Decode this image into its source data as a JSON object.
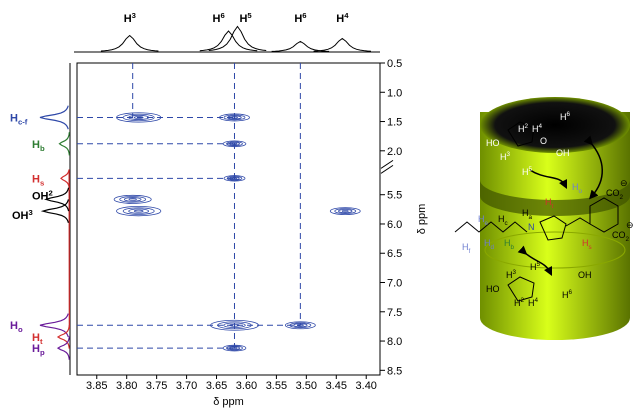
{
  "chart_data": {
    "type": "contour",
    "xlabel": "δ ppm",
    "ylabel": "δ ppm",
    "xlim": [
      3.883,
      3.377
    ],
    "xticks": [
      3.85,
      {
        "value": 3.8,
        "label": "3.80"
      },
      3.75,
      {
        "value": 3.7,
        "label": "3.70"
      },
      3.65,
      {
        "value": 3.6,
        "label": "3.60"
      },
      3.55,
      {
        "value": 3.5,
        "label": "3.50"
      },
      3.45,
      {
        "value": 3.4,
        "label": "3.40"
      }
    ],
    "ylim": [
      0.5,
      8.58
    ],
    "ybreak": [
      2.3,
      5.05
    ],
    "yticks": [
      0.5,
      {
        "value": 1,
        "label": "1.0"
      },
      1.5,
      {
        "value": 2,
        "label": "2.0"
      },
      5.5,
      {
        "value": 6,
        "label": "6.0"
      },
      6.5,
      {
        "value": 7,
        "label": "7.0"
      },
      7.5,
      {
        "value": 8,
        "label": "8.0"
      },
      8.5
    ],
    "color": "#2e48a8",
    "peaks": {
      "x": [
        3.78,
        3.62,
        3.62,
        3.62,
        3.79,
        3.78,
        3.435,
        3.62,
        3.51,
        3.62
      ],
      "y": [
        1.43,
        1.43,
        1.88,
        5.22,
        5.58,
        5.78,
        5.78,
        7.73,
        7.73,
        8.12
      ],
      "intensity": [
        0.9,
        0.5,
        0.3,
        0.25,
        0.7,
        0.9,
        0.5,
        1,
        0.5,
        0.3
      ]
    },
    "vguides": [
      [
        3.79,
        1.43
      ],
      [
        3.62,
        8.12
      ],
      [
        3.51,
        7.73
      ]
    ],
    "hguides": [
      [
        1.43,
        3.62
      ],
      [
        1.88,
        3.62
      ],
      [
        5.22,
        3.62
      ],
      [
        7.73,
        3.51
      ],
      [
        8.12,
        3.62
      ]
    ],
    "top_spectrum": {
      "labels": [
        {
          "main": "H",
          "sup": "3"
        },
        {
          "main": "H",
          "sup": "6"
        },
        {
          "main": "H",
          "sup": "5"
        },
        {
          "main": "H",
          "sup": "6"
        },
        {
          "main": "H",
          "sup": "4"
        }
      ],
      "x": [
        3.795,
        3.63,
        3.615,
        3.51,
        3.44
      ],
      "heights": [
        0.55,
        0.7,
        0.85,
        0.35,
        0.45
      ]
    },
    "left_spectrum": {
      "labels": [
        {
          "main": "H",
          "sub": "c-f"
        },
        {
          "main": "H",
          "sub": "b"
        },
        {
          "main": "H",
          "sub": "s"
        },
        {
          "main": "OH",
          "sup": "2"
        },
        {
          "main": "OH",
          "sup": "3"
        },
        {
          "main": "H",
          "sub": "o"
        },
        {
          "main": "H",
          "sub": "t"
        },
        {
          "main": "H",
          "sub": "p"
        }
      ],
      "y": [
        1.43,
        1.88,
        5.22,
        5.58,
        5.78,
        7.73,
        7.93,
        8.12
      ],
      "heights": [
        1,
        0.35,
        0.3,
        0.8,
        0.9,
        1,
        0.4,
        0.4
      ],
      "colors": [
        "#2e48a8",
        "#2e7d32",
        "#d32f2f",
        "#000000",
        "#000000",
        "#6a1b9a",
        "#d32f2f",
        "#6a1b9a"
      ]
    }
  },
  "diagram": {
    "labels": [
      {
        "main": "H",
        "sup": "2"
      },
      {
        "main": "H",
        "sup": "4"
      },
      {
        "main": "H",
        "sup": "6"
      },
      {
        "main": "HO"
      },
      {
        "main": "OH"
      },
      {
        "main": "H",
        "sup": "3"
      },
      {
        "main": "H",
        "sup": "5"
      },
      {
        "main": "O"
      },
      {
        "main": "H",
        "sub": "o"
      },
      {
        "main": "CO",
        "sub": "2"
      },
      {
        "main": "⊖"
      },
      {
        "main": "H",
        "sub": "e"
      },
      {
        "main": "H",
        "sub": "c"
      },
      {
        "main": "H",
        "sub": "a"
      },
      {
        "main": "H",
        "sub": "t"
      },
      {
        "main": "H",
        "sub": "f"
      },
      {
        "main": "H",
        "sub": "d"
      },
      {
        "main": "H",
        "sub": "b"
      },
      {
        "main": "N"
      },
      {
        "main": "H",
        "sub": "s"
      },
      {
        "main": "H",
        "sup": "3"
      },
      {
        "main": "H",
        "sup": "5"
      },
      {
        "main": "OH"
      },
      {
        "main": "HO"
      },
      {
        "main": "H",
        "sup": "2"
      },
      {
        "main": "H",
        "sup": "4"
      },
      {
        "main": "H",
        "sup": "6"
      },
      {
        "main": "CO",
        "sub": "2"
      },
      {
        "main": "⊖"
      }
    ]
  }
}
